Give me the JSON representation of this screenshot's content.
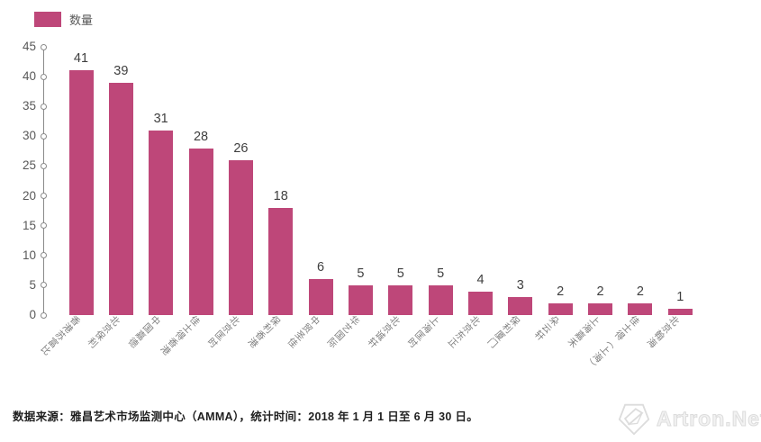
{
  "chart_data": {
    "type": "bar",
    "title": "",
    "legend": "数量",
    "categories": [
      "香港苏富比",
      "北京保利",
      "中国嘉德",
      "佳士得香港",
      "北京匡时",
      "保利香港",
      "中贸圣佳",
      "华艺国际",
      "北京诚轩",
      "上海匡时",
      "北京东正",
      "保利厦门",
      "朵云轩",
      "上海嘉禾",
      "佳士得（上海）",
      "北京翰海"
    ],
    "values": [
      41,
      39,
      31,
      28,
      26,
      18,
      6,
      5,
      5,
      5,
      4,
      3,
      2,
      2,
      2,
      1
    ],
    "xlabel": "",
    "ylabel": "",
    "ylim": [
      0,
      45
    ],
    "yticks": [
      0,
      5,
      10,
      15,
      20,
      25,
      30,
      35,
      40,
      45
    ],
    "grid": false,
    "legend_position": "top-left",
    "bar_color": "#BE4779"
  },
  "colors": {
    "bar": "#BE4779",
    "axis": "#8a8a8a",
    "tick_label": "#595959",
    "value_label": "#3f3f3f",
    "category_label": "#7f7f7f",
    "watermark": "#dcdcdc"
  },
  "footer": {
    "source_note": "数据来源：雅昌艺术市场监测中心（AMMA），统计时间：2018 年 1 月 1 日至 6 月 30 日。",
    "watermark": "Artron.Net"
  }
}
